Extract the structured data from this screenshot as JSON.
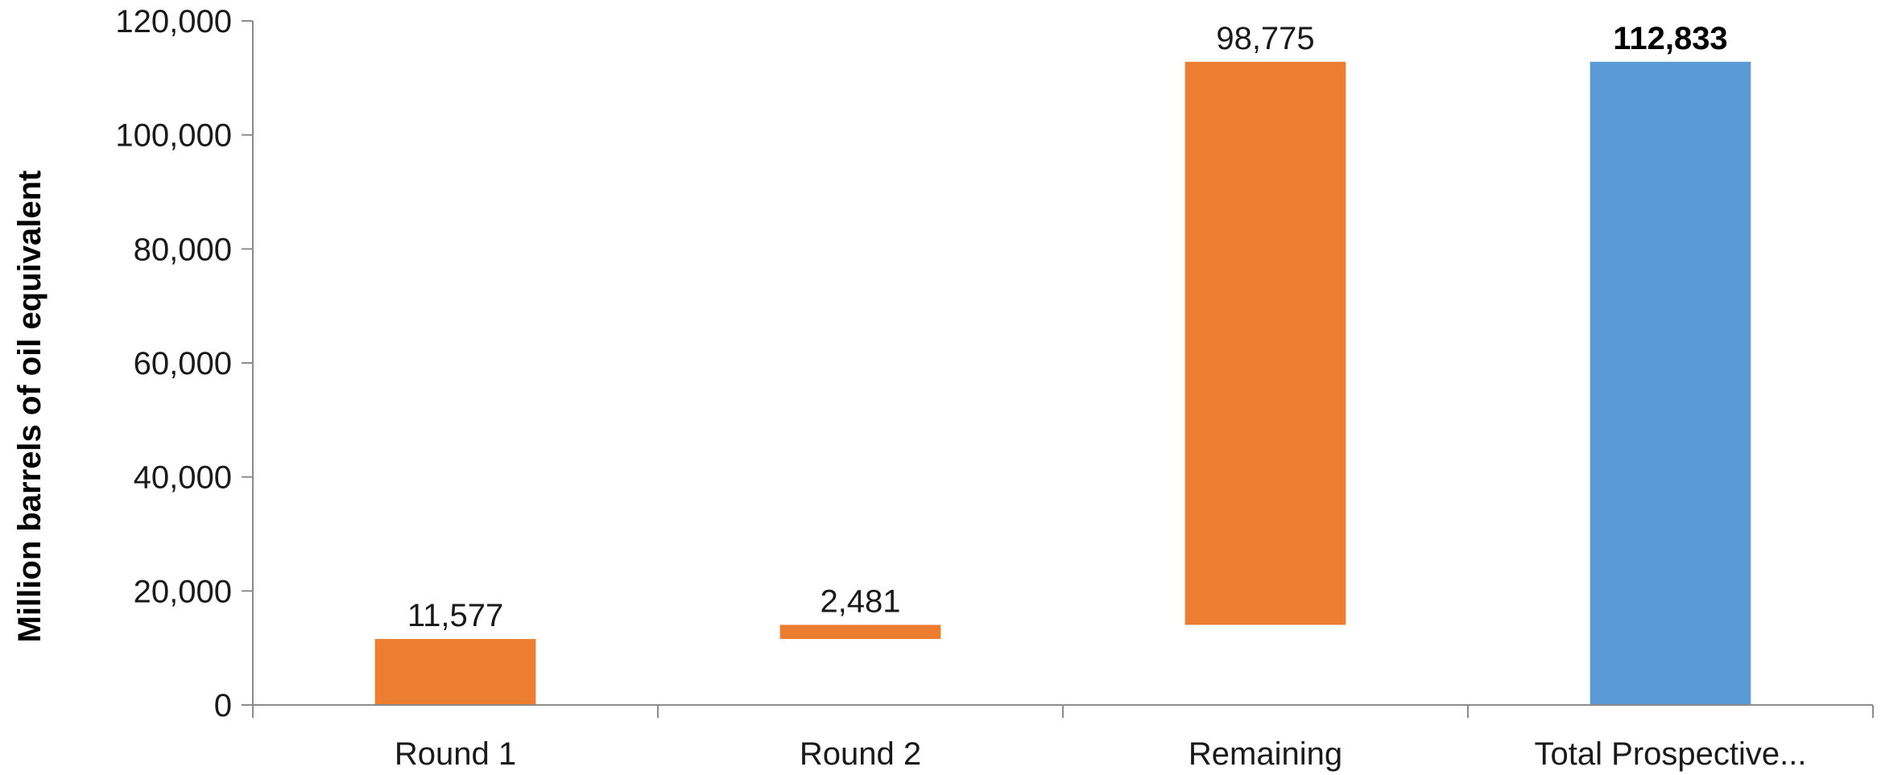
{
  "chart_data": {
    "type": "bar",
    "subtype": "waterfall",
    "title": "",
    "xlabel": "",
    "ylabel": "Million barrels of oil equivalent",
    "ylim": [
      0,
      120000
    ],
    "yticks": [
      0,
      20000,
      40000,
      60000,
      80000,
      100000,
      120000
    ],
    "ytick_labels": [
      "0",
      "20,000",
      "40,000",
      "60,000",
      "80,000",
      "100,000",
      "120,000"
    ],
    "grid": false,
    "legend": "none",
    "categories": [
      "Round 1",
      "Round 2",
      "Remaining",
      "Total Prospective..."
    ],
    "bars": [
      {
        "category": "Round 1",
        "start": 0,
        "end": 11577,
        "value": 11577,
        "label": "11,577",
        "color": "#ED7D31",
        "bold": false
      },
      {
        "category": "Round 2",
        "start": 11577,
        "end": 14058,
        "value": 2481,
        "label": "2,481",
        "color": "#ED7D31",
        "bold": false
      },
      {
        "category": "Remaining",
        "start": 14058,
        "end": 112833,
        "value": 98775,
        "label": "98,775",
        "color": "#ED7D31",
        "bold": false
      },
      {
        "category": "Total Prospective...",
        "start": 0,
        "end": 112833,
        "value": 112833,
        "label": "112,833",
        "color": "#5B9BD5",
        "bold": true
      }
    ]
  }
}
